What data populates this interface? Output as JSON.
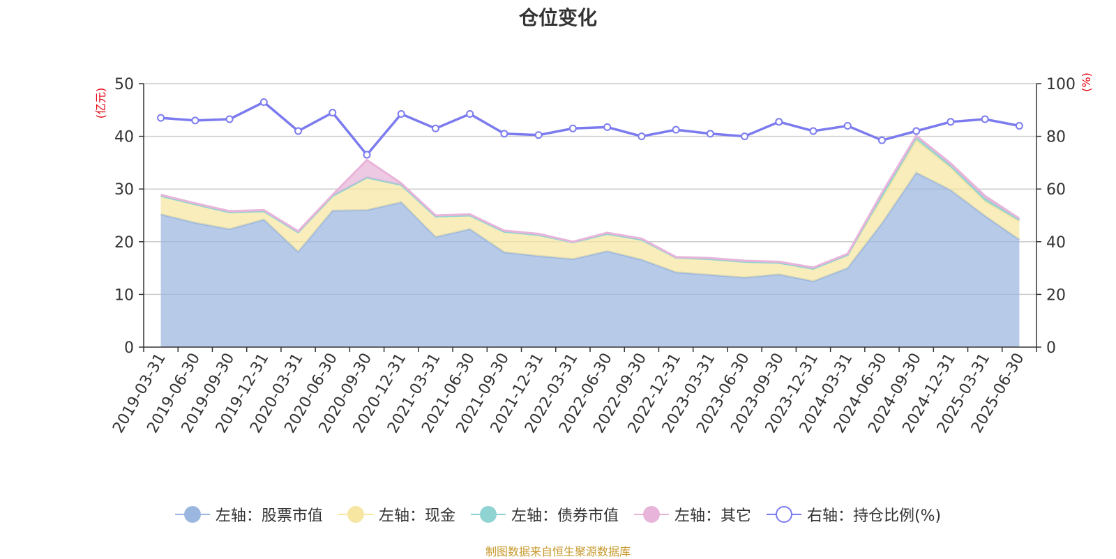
{
  "title": "仓位变化",
  "source_note": "制图数据来自恒生聚源数据库",
  "colors": {
    "stock": "#9bb7e0",
    "cash": "#f7e6a2",
    "bond": "#8fd3d3",
    "other": "#e8b4da",
    "position": "#7b7bef",
    "unit": "#e3000f",
    "source": "#c79a2c"
  },
  "legend": [
    {
      "label": "左轴：股票市值",
      "color": "#9bb7e0",
      "icon": "filled-circle"
    },
    {
      "label": "左轴：现金",
      "color": "#f7e6a2",
      "icon": "filled-circle"
    },
    {
      "label": "左轴：债券市值",
      "color": "#8fd3d3",
      "icon": "filled-circle"
    },
    {
      "label": "左轴：其它",
      "color": "#e8b4da",
      "icon": "filled-circle"
    },
    {
      "label": "右轴：持仓比例(%)",
      "color": "#7b7bef",
      "icon": "hollow-circle"
    }
  ],
  "chart_data": {
    "type": "area",
    "title": "仓位变化",
    "categories": [
      "2019-03-31",
      "2019-06-30",
      "2019-09-30",
      "2019-12-31",
      "2020-03-31",
      "2020-06-30",
      "2020-09-30",
      "2020-12-31",
      "2021-03-31",
      "2021-06-30",
      "2021-09-30",
      "2021-12-31",
      "2022-03-31",
      "2022-06-30",
      "2022-09-30",
      "2022-12-31",
      "2023-03-31",
      "2023-06-30",
      "2023-09-30",
      "2023-12-31",
      "2024-03-31",
      "2024-06-30",
      "2024-09-30",
      "2024-12-31",
      "2025-03-31",
      "2025-06-30"
    ],
    "left_axis": {
      "unit": "(亿元)",
      "ylim": [
        0,
        50
      ],
      "ticks": [
        "0",
        "10",
        "20",
        "30",
        "40",
        "50"
      ]
    },
    "right_axis": {
      "unit": "(%)",
      "ylim": [
        0,
        100
      ],
      "ticks": [
        "0",
        "20",
        "40",
        "60",
        "80",
        "100"
      ]
    },
    "grid": true,
    "legend_position": "bottom",
    "series": [
      {
        "name": "左轴：股票市值",
        "axis": "left",
        "stacked": true,
        "values": [
          25.2,
          23.6,
          22.4,
          24.2,
          18.1,
          25.9,
          26.0,
          27.5,
          20.9,
          22.4,
          18.0,
          17.3,
          16.7,
          18.2,
          16.6,
          14.2,
          13.7,
          13.2,
          13.8,
          12.5,
          15.0,
          23.5,
          33.1,
          29.8,
          24.9,
          20.4
        ]
      },
      {
        "name": "左轴：现金",
        "axis": "left",
        "stacked": true,
        "values": [
          3.5,
          3.5,
          3.2,
          1.6,
          3.7,
          2.8,
          6.2,
          3.3,
          3.9,
          2.6,
          3.9,
          4.0,
          3.2,
          3.3,
          3.8,
          2.8,
          3.0,
          3.0,
          2.2,
          2.4,
          2.5,
          4.8,
          6.2,
          4.3,
          2.8,
          3.5
        ]
      },
      {
        "name": "左轴：债券市值",
        "axis": "left",
        "stacked": true,
        "values": [
          0,
          0,
          0,
          0,
          0,
          0,
          0,
          0,
          0,
          0,
          0,
          0,
          0,
          0,
          0,
          0,
          0,
          0,
          0,
          0,
          0,
          0.6,
          0.6,
          0.4,
          0.5,
          0.3
        ]
      },
      {
        "name": "左轴：其它",
        "axis": "left",
        "stacked": true,
        "values": [
          0.2,
          0.2,
          0.2,
          0.2,
          0.2,
          0.2,
          3.3,
          0.3,
          0.2,
          0.2,
          0.2,
          0.2,
          0.1,
          0.2,
          0.2,
          0.1,
          0.2,
          0.2,
          0.2,
          0.2,
          0.2,
          0.4,
          0.2,
          0.4,
          0.5,
          0.2
        ]
      },
      {
        "name": "右轴：持仓比例(%)",
        "axis": "right",
        "type": "line",
        "values": [
          87,
          86,
          86.5,
          93,
          82,
          89,
          73,
          88.5,
          83,
          88.5,
          81,
          80.5,
          83,
          83.5,
          80,
          82.5,
          81,
          80,
          85.5,
          82,
          84,
          78.5,
          82,
          85.5,
          86.5,
          84
        ]
      }
    ]
  }
}
